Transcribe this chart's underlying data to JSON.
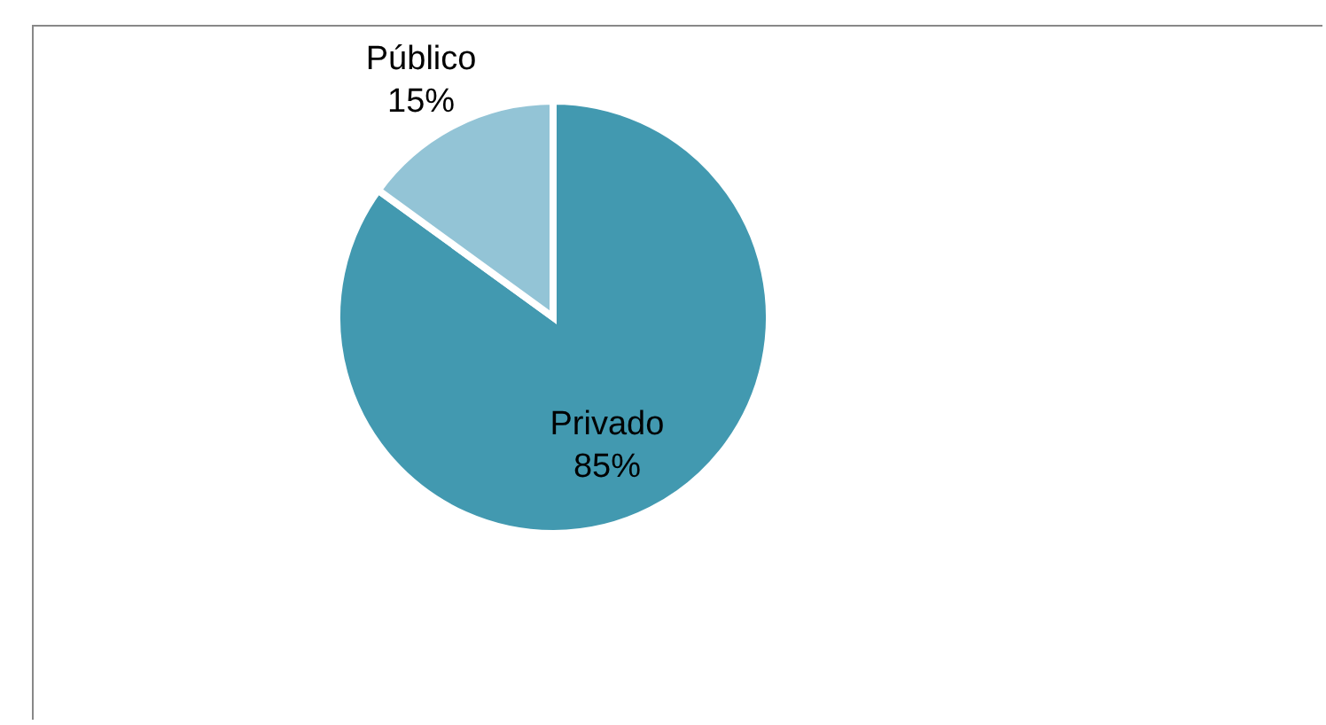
{
  "chart_data": {
    "type": "pie",
    "categories": [
      "Privado",
      "Público"
    ],
    "values": [
      85,
      15
    ],
    "colors": [
      "#4299b0",
      "#93c4d6"
    ],
    "value_labels": [
      "85%",
      "15%"
    ]
  }
}
